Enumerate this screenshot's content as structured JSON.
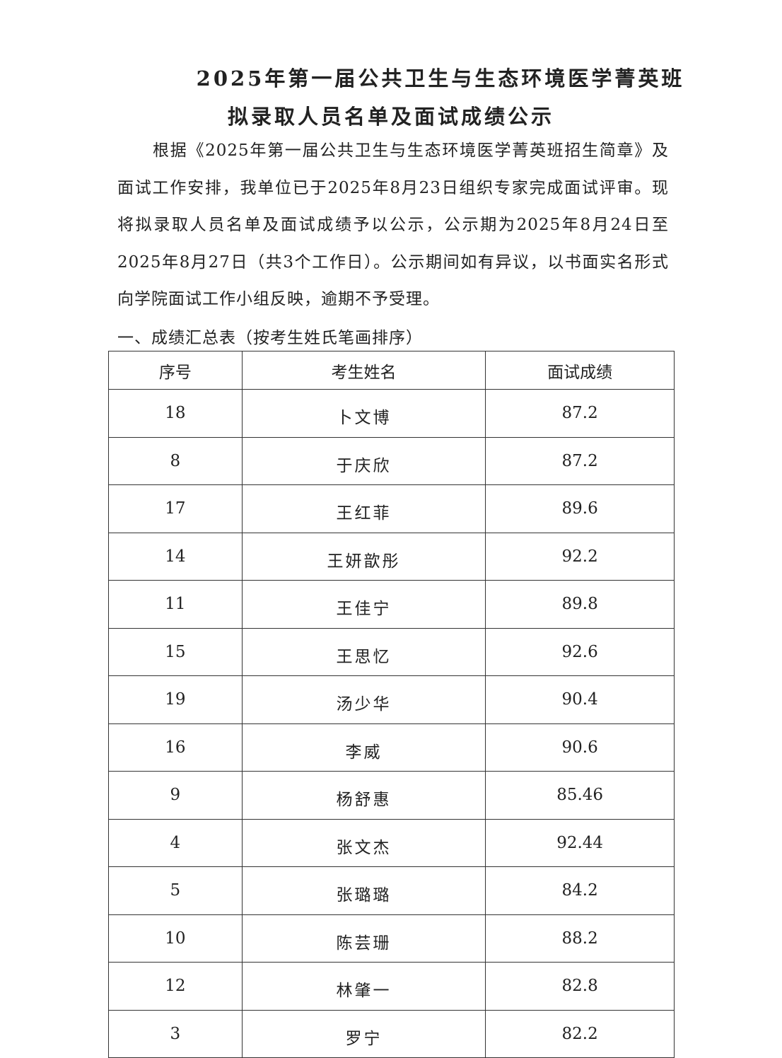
{
  "title": {
    "line1": "2025年第一届公共卫生与生态环境医学菁英班",
    "line2": "拟录取人员名单及面试成绩公示"
  },
  "body_text": "根据《2025年第一届公共卫生与生态环境医学菁英班招生简章》及面试工作安排，我单位已于2025年8月23日组织专家完成面试评审。现将拟录取人员名单及面试成绩予以公示，公示期为2025年8月24日至2025年8月27日（共3个工作日）。公示期间如有异议，以书面实名形式向学院面试工作小组反映，逾期不予受理。",
  "section_heading": "一、成绩汇总表（按考生姓氏笔画排序）",
  "table": {
    "headers": [
      "序号",
      "考生姓名",
      "面试成绩"
    ],
    "rows": [
      [
        "18",
        "卜文博",
        "87.2"
      ],
      [
        "8",
        "于庆欣",
        "87.2"
      ],
      [
        "17",
        "王红菲",
        "89.6"
      ],
      [
        "14",
        "王妍歆彤",
        "92.2"
      ],
      [
        "11",
        "王佳宁",
        "89.8"
      ],
      [
        "15",
        "王思忆",
        "92.6"
      ],
      [
        "19",
        "汤少华",
        "90.4"
      ],
      [
        "16",
        "李威",
        "90.6"
      ],
      [
        "9",
        "杨舒惠",
        "85.46"
      ],
      [
        "4",
        "张文杰",
        "92.44"
      ],
      [
        "5",
        "张璐璐",
        "84.2"
      ],
      [
        "10",
        "陈芸珊",
        "88.2"
      ],
      [
        "12",
        "林肇一",
        "82.8"
      ],
      [
        "3",
        "罗宁",
        "82.2"
      ]
    ]
  }
}
